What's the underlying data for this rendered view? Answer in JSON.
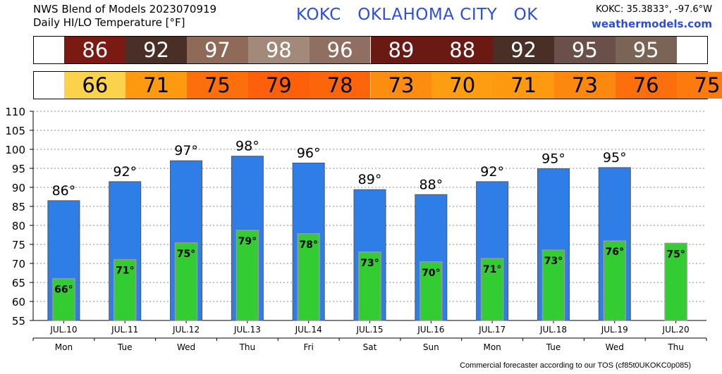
{
  "header": {
    "line1": "NWS Blend of Models 2023070919",
    "line2": "Daily HI/LO Temperature [°F]",
    "title": "KOKC   OKLAHOMA CITY   OK",
    "coords": "KOKC: 35.3833°, -97.6°W",
    "site": "weathermodels.com"
  },
  "footer": "Commercial forecaster according to our TOS (cf85t0UKOKC0p085)",
  "colors": {
    "hi_bar": "#2f7de6",
    "lo_bar": "#33cc33",
    "hi_strip": [
      "#7a1a12",
      "#4a2f26",
      "#8f6a58",
      "#a3897a",
      "#8e6f61",
      "#6a1a13",
      "#6a1a13",
      "#4a2f26",
      "#6a5048",
      "#7a6456"
    ],
    "lo_strip": [
      "#fad24b",
      "#fd9a10",
      "#fd6f0c",
      "#fd5f0a",
      "#fd650a",
      "#fd8d10",
      "#fd9d12",
      "#fd9a10",
      "#fd8810",
      "#fd6f0c",
      "#fd7a0e"
    ]
  },
  "chart_data": {
    "type": "bar",
    "title": "Daily HI/LO Temperature [°F]",
    "ylim": [
      55,
      110
    ],
    "yticks": [
      55,
      60,
      65,
      70,
      75,
      80,
      85,
      90,
      95,
      100,
      105,
      110
    ],
    "grid": true,
    "categories": [
      "JUL.10",
      "JUL.11",
      "JUL.12",
      "JUL.13",
      "JUL.14",
      "JUL.15",
      "JUL.16",
      "JUL.17",
      "JUL.18",
      "JUL.19",
      "JUL.20"
    ],
    "weekdays": [
      "Mon",
      "Tue",
      "Wed",
      "Thu",
      "Fri",
      "Sat",
      "Sun",
      "Mon",
      "Tue",
      "Wed",
      "Thu"
    ],
    "series": [
      {
        "name": "HI",
        "values": [
          86.5,
          91.5,
          97,
          98.2,
          96.4,
          89.4,
          88.1,
          91.5,
          94.9,
          95.2,
          null
        ],
        "labels": [
          "86°",
          "92°",
          "97°",
          "98°",
          "96°",
          "89°",
          "88°",
          "92°",
          "95°",
          "95°",
          ""
        ]
      },
      {
        "name": "LO",
        "values": [
          66,
          71,
          75.4,
          78.7,
          77.8,
          73,
          70.4,
          71.3,
          73.5,
          75.9,
          75.3
        ],
        "labels": [
          "66°",
          "71°",
          "75°",
          "79°",
          "78°",
          "73°",
          "70°",
          "71°",
          "73°",
          "76°",
          "75°"
        ]
      }
    ],
    "hi_strip": [
      "86",
      "92",
      "97",
      "98",
      "96",
      "89",
      "88",
      "92",
      "95",
      "95",
      ""
    ],
    "lo_strip": [
      "66",
      "71",
      "75",
      "79",
      "78",
      "73",
      "70",
      "71",
      "73",
      "76",
      "75"
    ]
  }
}
